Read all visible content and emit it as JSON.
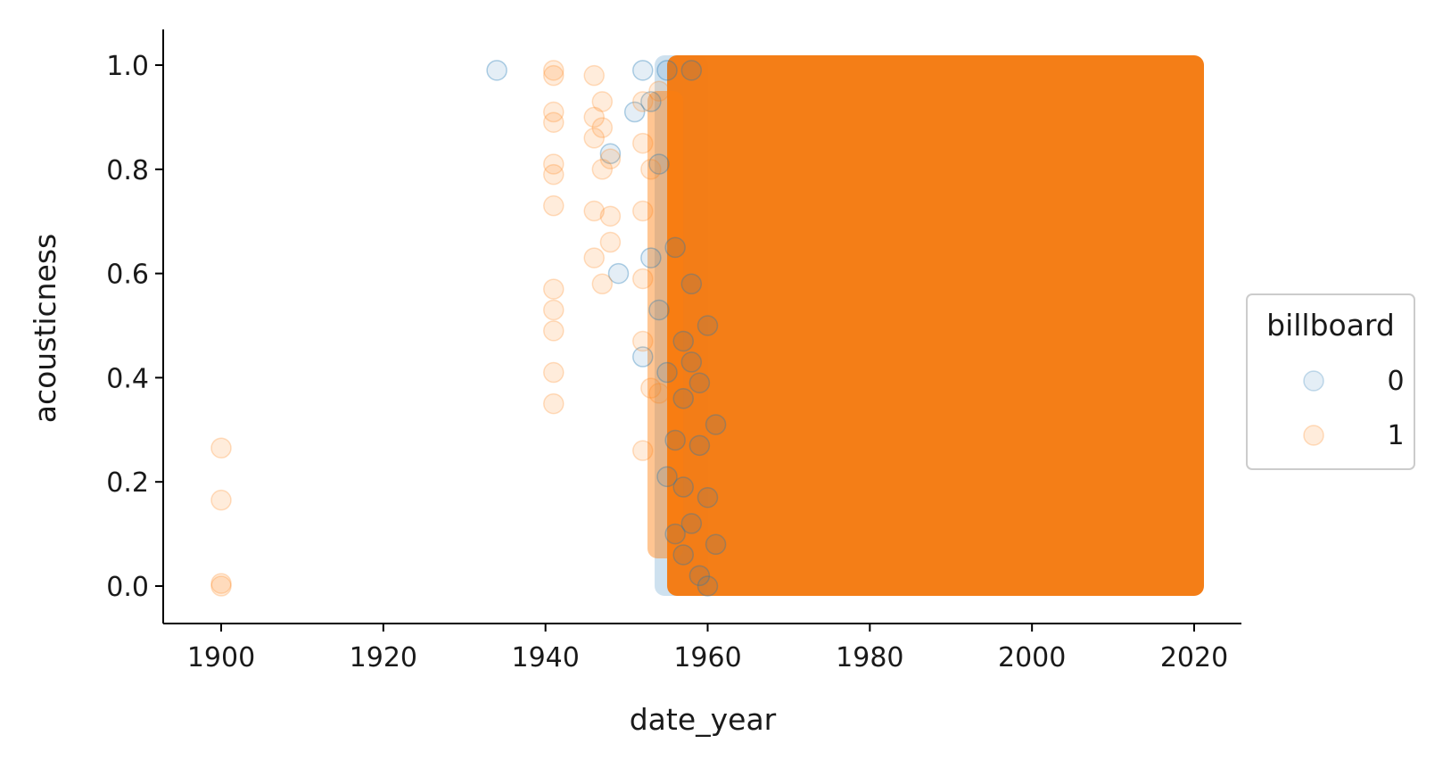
{
  "chart_data": {
    "type": "scatter",
    "xlabel": "date_year",
    "ylabel": "acousticness",
    "xlim": [
      1893,
      2026
    ],
    "ylim": [
      -0.07,
      1.07
    ],
    "x_ticks": [
      1900,
      1920,
      1940,
      1960,
      1980,
      2000,
      2020
    ],
    "y_ticks": [
      0.0,
      0.2,
      0.4,
      0.6,
      0.8,
      1.0
    ],
    "x_tick_labels": [
      "1900",
      "1920",
      "1940",
      "1960",
      "1980",
      "2000",
      "2020"
    ],
    "y_tick_labels": [
      "0.0",
      "0.2",
      "0.4",
      "0.6",
      "0.8",
      "1.0"
    ],
    "grid": false,
    "legend": {
      "title": "billboard",
      "placement": "right",
      "entries": [
        "0",
        "1"
      ]
    },
    "series": [
      {
        "name": "0",
        "color": "#1f77b4",
        "x": [
          1934,
          1948,
          1949,
          1951,
          1952,
          1952,
          1953,
          1953,
          1954,
          1954,
          1955,
          1955,
          1955,
          1956,
          1956,
          1956,
          1957,
          1957,
          1957,
          1957,
          1958,
          1958,
          1958,
          1958,
          1959,
          1959,
          1959,
          1960,
          1960,
          1960,
          1961,
          1961
        ],
        "y": [
          0.99,
          0.83,
          0.6,
          0.91,
          0.99,
          0.44,
          0.63,
          0.93,
          0.53,
          0.81,
          0.99,
          0.41,
          0.21,
          0.65,
          0.28,
          0.1,
          0.47,
          0.36,
          0.19,
          0.06,
          0.58,
          0.43,
          0.12,
          0.99,
          0.39,
          0.27,
          0.02,
          0.5,
          0.17,
          0.0,
          0.31,
          0.08
        ]
      },
      {
        "name": "1",
        "color": "#ff7f0e",
        "x": [
          1900,
          1900,
          1900,
          1900,
          1941,
          1941,
          1941,
          1941,
          1941,
          1941,
          1941,
          1941,
          1941,
          1941,
          1941,
          1941,
          1946,
          1946,
          1946,
          1946,
          1946,
          1947,
          1947,
          1947,
          1947,
          1948,
          1948,
          1948,
          1952,
          1952,
          1952,
          1952,
          1952,
          1952,
          1953,
          1953,
          1954,
          1954
        ],
        "y": [
          0.0,
          0.005,
          0.165,
          0.265,
          0.99,
          0.98,
          0.91,
          0.89,
          0.81,
          0.79,
          0.73,
          0.57,
          0.53,
          0.49,
          0.41,
          0.35,
          0.98,
          0.9,
          0.86,
          0.72,
          0.63,
          0.93,
          0.88,
          0.8,
          0.58,
          0.82,
          0.71,
          0.66,
          0.93,
          0.85,
          0.72,
          0.59,
          0.47,
          0.26,
          0.8,
          0.38,
          0.95,
          0.37
        ]
      }
    ],
    "dense_region": {
      "series": "1",
      "x_range": [
        1955,
        2020
      ],
      "y_range": [
        0.0,
        1.0
      ],
      "description_color": "#f47a10"
    }
  }
}
